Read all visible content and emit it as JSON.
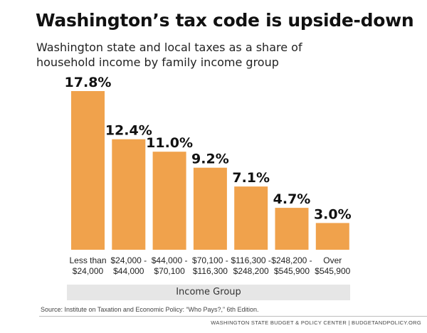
{
  "header": {
    "title": "Washington’s tax code is upside-down",
    "subtitle": "Washington state and local taxes as a share of household income by family income group"
  },
  "colors": {
    "bar": "#F0A24C",
    "axis_band": "#E6E6E6",
    "text": "#111111"
  },
  "chart_data": {
    "type": "bar",
    "title": "Washington’s tax code is upside-down",
    "subtitle": "Washington state and local taxes as a share of household income by family income group",
    "xlabel": "Income Group",
    "ylabel": "",
    "grid": false,
    "categories": [
      [
        "Less than",
        "$24,000"
      ],
      [
        "$24,000 -",
        "$44,000"
      ],
      [
        "$44,000 -",
        "$70,100"
      ],
      [
        "$70,100 -",
        "$116,300"
      ],
      [
        "$116,300 -",
        "$248,200"
      ],
      [
        "$248,200 -",
        "$545,900"
      ],
      [
        "Over",
        "$545,900"
      ]
    ],
    "values": [
      17.8,
      12.4,
      11.0,
      9.2,
      7.1,
      4.7,
      3.0
    ],
    "value_labels": [
      "17.8%",
      "12.4%",
      "11.0%",
      "9.2%",
      "7.1%",
      "4.7%",
      "3.0%"
    ],
    "unit": "%",
    "ylim": [
      0,
      17.8
    ]
  },
  "footer": {
    "source": "Source: Institute on Taxation and Economic Policy: “Who Pays?,” 6th Edition.",
    "credit": "WASHINGTON STATE BUDGET & POLICY CENTER | BUDGETANDPOLICY.ORG"
  }
}
